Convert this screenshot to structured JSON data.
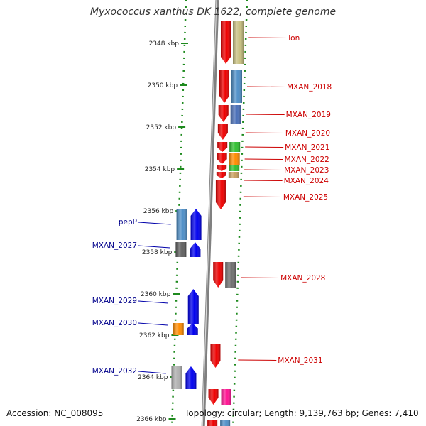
{
  "title": "Myxococcus xanthus DK 1622, complete genome",
  "footer": {
    "accession": "Accession: NC_008095",
    "topology": "Topology: circular; Length: 9,139,763 bp; Genes: 7,410"
  },
  "colors": {
    "background": "#ffffff",
    "backbone": "#808080",
    "scale_dots": "#1e8a1e",
    "forward_label": "#cc0000",
    "reverse_label": "#00008b",
    "label_leader_forward": "#cc0000",
    "label_leader_reverse": "#0000aa"
  },
  "scale": {
    "unit": "kbp",
    "ticks": [
      "2348 kbp",
      "2350 kbp",
      "2352 kbp",
      "2354 kbp",
      "2356 kbp",
      "2358 kbp",
      "2360 kbp",
      "2362 kbp",
      "2364 kbp",
      "2366 kbp"
    ]
  },
  "genes_forward": [
    {
      "name": "lon",
      "arrow_color": "#ee0000",
      "feature_color": "#c8c080"
    },
    {
      "name": "MXAN_2018",
      "arrow_color": "#ee0000",
      "feature_color": "#5090c8"
    },
    {
      "name": "MXAN_2019",
      "arrow_color": "#ee0000",
      "feature_color": "#4a70b8"
    },
    {
      "name": "MXAN_2020",
      "arrow_color": "#ee0000",
      "feature_color": ""
    },
    {
      "name": "MXAN_2021",
      "arrow_color": "#ee0000",
      "feature_color": "#30c030"
    },
    {
      "name": "MXAN_2022",
      "arrow_color": "#ee0000",
      "feature_color": "#ff8c00"
    },
    {
      "name": "MXAN_2023",
      "arrow_color": "#ee0000",
      "feature_color": "#30c030"
    },
    {
      "name": "MXAN_2024",
      "arrow_color": "#ee0000",
      "feature_color": "#c8a060"
    },
    {
      "name": "MXAN_2025",
      "arrow_color": "#ee0000",
      "feature_color": ""
    },
    {
      "name": "MXAN_2028",
      "arrow_color": "#ee0000",
      "feature_color": "#707070"
    },
    {
      "name": "MXAN_2031",
      "arrow_color": "#ee0000",
      "feature_color": ""
    }
  ],
  "genes_reverse": [
    {
      "name": "pepP",
      "arrow_color": "#0000ee",
      "feature_color": "#5090c8"
    },
    {
      "name": "MXAN_2027",
      "arrow_color": "#0000ee",
      "feature_color": "#606060"
    },
    {
      "name": "MXAN_2029",
      "arrow_color": "#0000ee",
      "feature_color": ""
    },
    {
      "name": "MXAN_2030",
      "arrow_color": "#0000ee",
      "feature_color": "#ff8c00"
    },
    {
      "name": "MXAN_2032",
      "arrow_color": "#0000ee",
      "feature_color": "#b0b0b0"
    }
  ],
  "unlabeled_features": [
    {
      "arrow_color": "#ee0000",
      "feature_color": "#ff1493"
    },
    {
      "arrow_color": "#ee0000",
      "feature_color": "#5090c8"
    }
  ]
}
